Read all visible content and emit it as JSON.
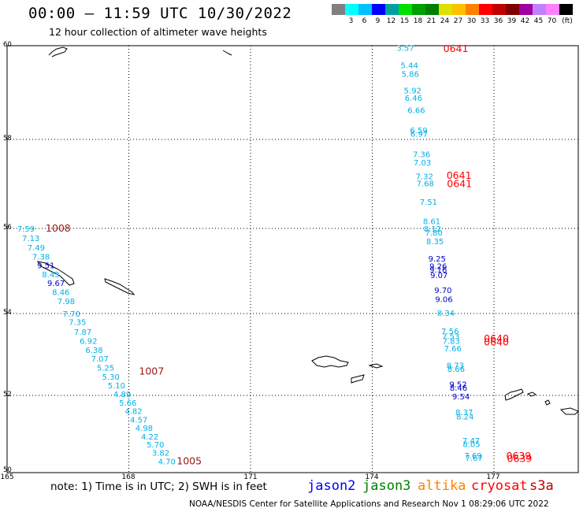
{
  "header": {
    "title": "00:00 — 11:59 UTC 10/30/2022",
    "subtitle": "12 hour collection of altimeter wave heights"
  },
  "legend": {
    "unit": "(ft)",
    "colors": [
      "#808080",
      "#00ffff",
      "#00c0ff",
      "#0000ff",
      "#00a0a0",
      "#00e000",
      "#00a000",
      "#008000",
      "#e0e000",
      "#ffc000",
      "#ff8000",
      "#ff0000",
      "#c00000",
      "#800000",
      "#a000a0",
      "#c080ff",
      "#ff80ff",
      "#000000"
    ],
    "labels": [
      "3",
      "6",
      "9",
      "12",
      "15",
      "18",
      "21",
      "24",
      "27",
      "30",
      "33",
      "36",
      "39",
      "42",
      "45",
      "70"
    ]
  },
  "axes": {
    "lat_labels": [
      "60",
      "58",
      "56",
      "54",
      "52",
      "50"
    ],
    "lon_labels": [
      "165",
      "168",
      "171",
      "174",
      "177"
    ]
  },
  "colors": {
    "jason2": "#0000ff",
    "jason3": "#008000",
    "altika": "#ff8000",
    "cryosat": "#ff0000",
    "s3a": "#c00000",
    "light_blue": "#00b0e8",
    "dark_red": "#9b1515",
    "red": "#ff0000",
    "blue": "#0000cd"
  },
  "observations": {
    "left_track": [
      {
        "v": "7.59",
        "lon": 165.25,
        "lat": 56.0,
        "c": "light_blue"
      },
      {
        "v": "7.13",
        "lon": 165.37,
        "lat": 55.78,
        "c": "light_blue"
      },
      {
        "v": "7.49",
        "lon": 165.5,
        "lat": 55.56,
        "c": "light_blue"
      },
      {
        "v": "7.38",
        "lon": 165.62,
        "lat": 55.34,
        "c": "light_blue"
      },
      {
        "v": "9.51",
        "lon": 165.74,
        "lat": 55.14,
        "c": "blue"
      },
      {
        "v": "8.43",
        "lon": 165.86,
        "lat": 54.93,
        "c": "light_blue"
      },
      {
        "v": "9.67",
        "lon": 165.99,
        "lat": 54.72,
        "c": "blue"
      },
      {
        "v": "8.46",
        "lon": 166.11,
        "lat": 54.51,
        "c": "light_blue"
      },
      {
        "v": "7.98",
        "lon": 166.24,
        "lat": 54.3,
        "c": "light_blue"
      },
      {
        "v": "7.70",
        "lon": 166.37,
        "lat": 54.0,
        "c": "light_blue"
      },
      {
        "v": "7.35",
        "lon": 166.52,
        "lat": 53.8,
        "c": "light_blue"
      },
      {
        "v": "7.87",
        "lon": 166.65,
        "lat": 53.56,
        "c": "light_blue"
      },
      {
        "v": "6.92",
        "lon": 166.79,
        "lat": 53.34,
        "c": "light_blue"
      },
      {
        "v": "6.38",
        "lon": 166.93,
        "lat": 53.12,
        "c": "light_blue"
      },
      {
        "v": "7.07",
        "lon": 167.07,
        "lat": 52.9,
        "c": "light_blue"
      },
      {
        "v": "5.25",
        "lon": 167.21,
        "lat": 52.68,
        "c": "light_blue"
      },
      {
        "v": "5.30",
        "lon": 167.34,
        "lat": 52.46,
        "c": "light_blue"
      },
      {
        "v": "5.10",
        "lon": 167.48,
        "lat": 52.25,
        "c": "light_blue"
      },
      {
        "v": "4.89",
        "lon": 167.62,
        "lat": 52.04,
        "c": "light_blue"
      },
      {
        "v": "5.66",
        "lon": 167.76,
        "lat": 51.82,
        "c": "light_blue"
      },
      {
        "v": "4.82",
        "lon": 167.9,
        "lat": 51.6,
        "c": "light_blue"
      },
      {
        "v": "4.57",
        "lon": 168.03,
        "lat": 51.38,
        "c": "light_blue"
      },
      {
        "v": "4.98",
        "lon": 168.16,
        "lat": 51.16,
        "c": "light_blue"
      },
      {
        "v": "4.22",
        "lon": 168.3,
        "lat": 50.94,
        "c": "light_blue"
      },
      {
        "v": "5.70",
        "lon": 168.44,
        "lat": 50.73,
        "c": "light_blue"
      },
      {
        "v": "3.82",
        "lon": 168.57,
        "lat": 50.52,
        "c": "light_blue"
      },
      {
        "v": "4.70",
        "lon": 168.72,
        "lat": 50.3,
        "c": "light_blue"
      }
    ],
    "left_times": [
      {
        "v": "1008",
        "lon": 165.95,
        "lat": 56.0,
        "c": "dark_red"
      },
      {
        "v": "1007",
        "lon": 168.25,
        "lat": 52.59,
        "c": "dark_red"
      },
      {
        "v": "1005",
        "lon": 169.18,
        "lat": 50.3,
        "c": "dark_red"
      }
    ],
    "right_track": [
      {
        "v": "3.57",
        "lon": 174.6,
        "lat": 59.96,
        "c": "light_blue"
      },
      {
        "v": "5.44",
        "lon": 174.7,
        "lat": 59.59,
        "c": "light_blue"
      },
      {
        "v": "5.86",
        "lon": 174.72,
        "lat": 59.4,
        "c": "light_blue"
      },
      {
        "v": "5.92",
        "lon": 174.78,
        "lat": 59.05,
        "c": "light_blue"
      },
      {
        "v": "6.46",
        "lon": 174.8,
        "lat": 58.89,
        "c": "light_blue"
      },
      {
        "v": "6.66",
        "lon": 174.87,
        "lat": 58.63,
        "c": "light_blue"
      },
      {
        "v": "6.59",
        "lon": 174.93,
        "lat": 58.2,
        "c": "light_blue"
      },
      {
        "v": "6.97",
        "lon": 174.94,
        "lat": 58.13,
        "c": "light_blue"
      },
      {
        "v": "7.36",
        "lon": 175.0,
        "lat": 57.67,
        "c": "light_blue"
      },
      {
        "v": "7.03",
        "lon": 175.02,
        "lat": 57.49,
        "c": "light_blue"
      },
      {
        "v": "7.32",
        "lon": 175.07,
        "lat": 57.18,
        "c": "light_blue"
      },
      {
        "v": "7.68",
        "lon": 175.09,
        "lat": 57.02,
        "c": "light_blue"
      },
      {
        "v": "7.51",
        "lon": 175.17,
        "lat": 56.6,
        "c": "light_blue"
      },
      {
        "v": "8.61",
        "lon": 175.25,
        "lat": 56.17,
        "c": "light_blue"
      },
      {
        "v": "8.12",
        "lon": 175.27,
        "lat": 56.0,
        "c": "light_blue"
      },
      {
        "v": "7.80",
        "lon": 175.3,
        "lat": 55.91,
        "c": "light_blue"
      },
      {
        "v": "8.35",
        "lon": 175.33,
        "lat": 55.7,
        "c": "light_blue"
      },
      {
        "v": "9.25",
        "lon": 175.38,
        "lat": 55.3,
        "c": "blue"
      },
      {
        "v": "9.26",
        "lon": 175.41,
        "lat": 55.12,
        "c": "blue"
      },
      {
        "v": "9.16",
        "lon": 175.41,
        "lat": 55.04,
        "c": "blue"
      },
      {
        "v": "9.07",
        "lon": 175.43,
        "lat": 54.91,
        "c": "blue"
      },
      {
        "v": "9.70",
        "lon": 175.53,
        "lat": 54.56,
        "c": "blue"
      },
      {
        "v": "9.06",
        "lon": 175.55,
        "lat": 54.34,
        "c": "blue"
      },
      {
        "v": "8.34",
        "lon": 175.6,
        "lat": 54.02,
        "c": "light_blue"
      },
      {
        "v": "7.56",
        "lon": 175.7,
        "lat": 53.58,
        "c": "light_blue"
      },
      {
        "v": "7.53",
        "lon": 175.72,
        "lat": 53.45,
        "c": "light_blue"
      },
      {
        "v": "7.83",
        "lon": 175.73,
        "lat": 53.34,
        "c": "light_blue"
      },
      {
        "v": "7.66",
        "lon": 175.77,
        "lat": 53.15,
        "c": "light_blue"
      },
      {
        "v": "8.73",
        "lon": 175.83,
        "lat": 52.74,
        "c": "light_blue"
      },
      {
        "v": "8.66",
        "lon": 175.85,
        "lat": 52.65,
        "c": "light_blue"
      },
      {
        "v": "9.52",
        "lon": 175.9,
        "lat": 52.28,
        "c": "blue"
      },
      {
        "v": "8.46",
        "lon": 175.91,
        "lat": 52.19,
        "c": "blue"
      },
      {
        "v": "9.54",
        "lon": 175.97,
        "lat": 51.98,
        "c": "blue"
      },
      {
        "v": "8.37",
        "lon": 176.05,
        "lat": 51.57,
        "c": "light_blue"
      },
      {
        "v": "8.24",
        "lon": 176.07,
        "lat": 51.46,
        "c": "light_blue"
      },
      {
        "v": "7.47",
        "lon": 176.22,
        "lat": 50.84,
        "c": "light_blue"
      },
      {
        "v": "8.05",
        "lon": 176.23,
        "lat": 50.74,
        "c": "light_blue"
      },
      {
        "v": "7.69",
        "lon": 176.27,
        "lat": 50.45,
        "c": "light_blue"
      },
      {
        "v": "7.67",
        "lon": 176.29,
        "lat": 50.39,
        "c": "light_blue"
      }
    ],
    "right_times": [
      {
        "v": "0641",
        "lon": 175.75,
        "lat": 59.93,
        "c": "red"
      },
      {
        "v": "0641",
        "lon": 175.83,
        "lat": 57.19,
        "c": "red"
      },
      {
        "v": "0641",
        "lon": 175.84,
        "lat": 57.0,
        "c": "red"
      },
      {
        "v": "0640",
        "lon": 176.75,
        "lat": 53.38,
        "c": "red"
      },
      {
        "v": "0640",
        "lon": 176.75,
        "lat": 53.3,
        "c": "red"
      },
      {
        "v": "0639",
        "lon": 177.3,
        "lat": 50.43,
        "c": "red"
      },
      {
        "v": "0639",
        "lon": 177.32,
        "lat": 50.36,
        "c": "red"
      }
    ]
  },
  "note": "note: 1) Time is in UTC; 2) SWH is in feet",
  "satellites": [
    {
      "name": "jason2",
      "color": "jason2"
    },
    {
      "name": "jason3",
      "color": "jason3"
    },
    {
      "name": "altika",
      "color": "altika"
    },
    {
      "name": "cryosat",
      "color": "cryosat"
    },
    {
      "name": "s3a",
      "color": "s3a"
    }
  ],
  "footer": "NOAA/NESDIS Center for Satellite Applications and Research    Nov  1 08:29:06 UTC 2022"
}
